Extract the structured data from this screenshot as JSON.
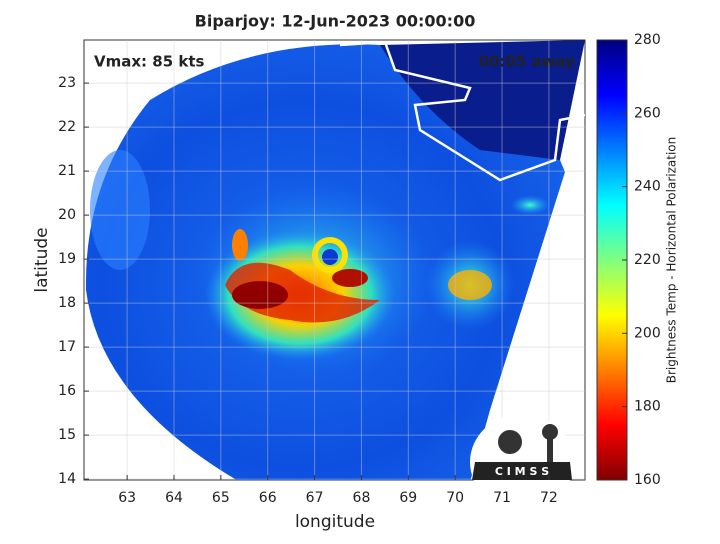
{
  "chart_data": {
    "type": "image",
    "title": "Biparjoy: 12-Jun-2023 00:00:00",
    "annotations": [
      "Vmax: 85 kts",
      "00:05 away"
    ],
    "xlabel": "longitude",
    "ylabel": "latitude",
    "xlim": [
      62.08,
      72.77
    ],
    "ylim": [
      13.98,
      23.98
    ],
    "xticks": [
      63,
      64,
      65,
      66,
      67,
      68,
      69,
      70,
      71,
      72
    ],
    "yticks": [
      14,
      15,
      16,
      17,
      18,
      19,
      20,
      21,
      22,
      23
    ],
    "grid": true,
    "colorbar": {
      "label": "Brightness Temp - Horizontal Polarization",
      "lim": [
        160,
        280
      ],
      "ticks": [
        160,
        180,
        200,
        220,
        240,
        260,
        280
      ],
      "colormap": [
        "#800000",
        "#ff0000",
        "#ffff00",
        "#00ffff",
        "#0000ff",
        "#000080"
      ]
    },
    "logo": "C I M S S"
  }
}
